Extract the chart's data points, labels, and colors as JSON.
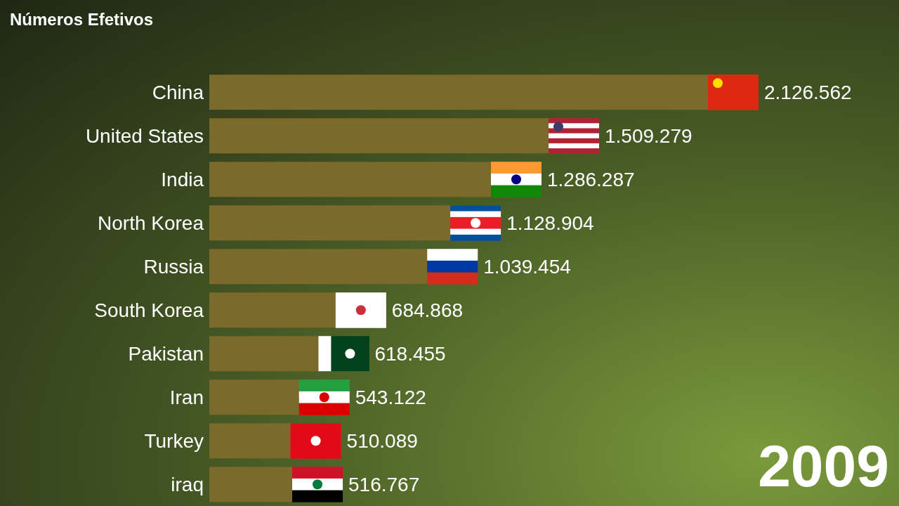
{
  "chart_data": {
    "type": "bar",
    "orientation": "horizontal",
    "title": "Números Efetivos",
    "categories": [
      "China",
      "United States",
      "India",
      "North Korea",
      "Russia",
      "South Korea",
      "Pakistan",
      "Iran",
      "Turkey",
      "iraq"
    ],
    "values": [
      2126562,
      1509279,
      1286287,
      1128904,
      1039454,
      684868,
      618455,
      543122,
      510089,
      516767
    ],
    "value_labels": [
      "2.126.562",
      "1.509.279",
      "1.286.287",
      "1.128.904",
      "1.039.454",
      "684.868",
      "618.455",
      "543.122",
      "510.089",
      "516.767"
    ],
    "color": "#7a6a2c",
    "annotations": [
      "2009"
    ]
  }
}
